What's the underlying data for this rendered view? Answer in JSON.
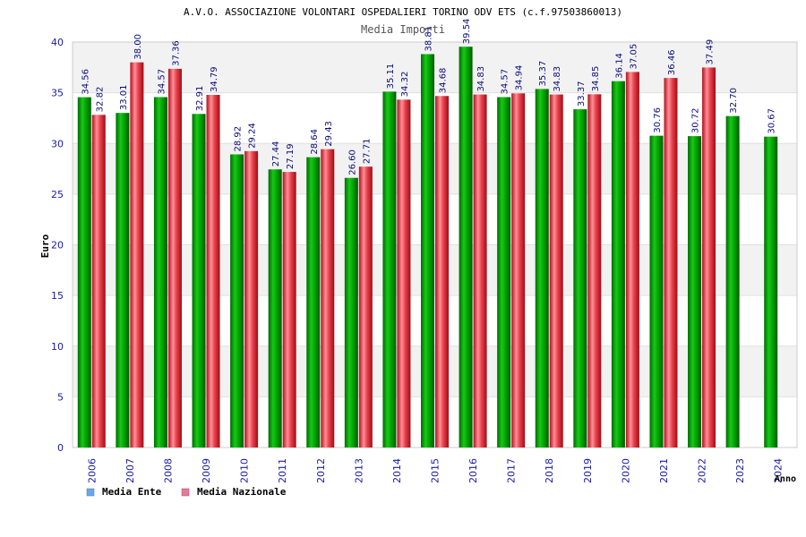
{
  "chart_data": {
    "type": "bar",
    "title": "A.V.O. ASSOCIAZIONE VOLONTARI OSPEDALIERI TORINO ODV ETS (c.f.97503860013)",
    "subtitle": "Media Importi",
    "xlabel": "Anno",
    "ylabel": "Euro",
    "ylim": [
      0,
      40
    ],
    "yticks": [
      0,
      5,
      10,
      15,
      20,
      25,
      30,
      35,
      40
    ],
    "grid": true,
    "legend_position": "bottom-left",
    "categories": [
      "2006",
      "2007",
      "2008",
      "2009",
      "2010",
      "2011",
      "2012",
      "2013",
      "2014",
      "2015",
      "2016",
      "2017",
      "2018",
      "2019",
      "2020",
      "2021",
      "2022",
      "2023",
      "2024"
    ],
    "series": [
      {
        "name": "Media Ente",
        "color": "#00a000",
        "legend_color": "#6aa7ea",
        "values": [
          34.56,
          33.01,
          34.57,
          32.91,
          28.92,
          27.44,
          28.64,
          26.6,
          35.11,
          38.81,
          39.54,
          34.57,
          35.37,
          33.37,
          36.14,
          30.76,
          30.72,
          32.7,
          30.67
        ],
        "labels": [
          "34.56",
          "33.01",
          "34.57",
          "32.91",
          "28.92",
          "27.44",
          "28.64",
          "26.60",
          "35.11",
          "38.81",
          "39.54",
          "34.57",
          "35.37",
          "33.37",
          "36.14",
          "30.76",
          "30.72",
          "32.70",
          "30.67"
        ]
      },
      {
        "name": "Media Nazionale",
        "color": "#e0202a",
        "legend_color": "#e27a9a",
        "values": [
          32.82,
          38.0,
          37.36,
          34.79,
          29.24,
          27.19,
          29.43,
          27.71,
          34.32,
          34.68,
          34.83,
          34.94,
          34.83,
          34.85,
          37.05,
          36.46,
          37.49,
          null,
          null
        ],
        "labels": [
          "32.82",
          "38.00",
          "37.36",
          "34.79",
          "29.24",
          "27.19",
          "29.43",
          "27.71",
          "34.32",
          "34.68",
          "34.83",
          "34.94",
          "34.83",
          "34.85",
          "37.05",
          "36.46",
          "37.49",
          null,
          null
        ]
      }
    ]
  }
}
